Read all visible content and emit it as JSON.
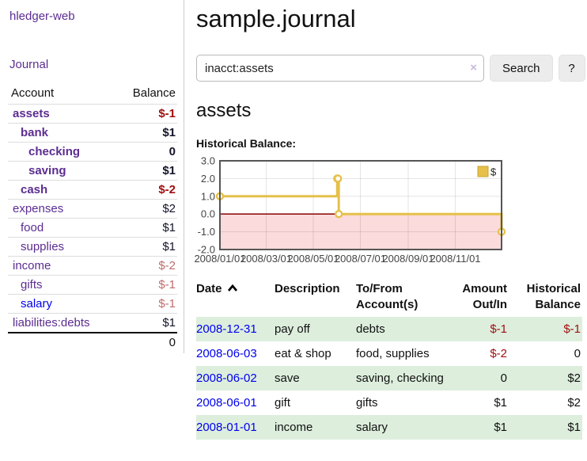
{
  "app": {
    "brand": "hledger-web",
    "nav_journal": "Journal"
  },
  "sidebar": {
    "accounts_header": "Account",
    "balance_header": "Balance",
    "items": [
      {
        "label": "assets",
        "balance": "$-1",
        "level": 0,
        "bold": true,
        "negative": true,
        "blue": false
      },
      {
        "label": "bank",
        "balance": "$1",
        "level": 1,
        "bold": true,
        "negative": false,
        "blue": false
      },
      {
        "label": "checking",
        "balance": "0",
        "level": 2,
        "bold": true,
        "negative": false,
        "blue": false
      },
      {
        "label": "saving",
        "balance": "$1",
        "level": 2,
        "bold": true,
        "negative": false,
        "blue": false
      },
      {
        "label": "cash",
        "balance": "$-2",
        "level": 1,
        "bold": true,
        "negative": true,
        "blue": false
      },
      {
        "label": "expenses",
        "balance": "$2",
        "level": 0,
        "bold": false,
        "negative": false,
        "blue": false
      },
      {
        "label": "food",
        "balance": "$1",
        "level": 1,
        "bold": false,
        "negative": false,
        "blue": false
      },
      {
        "label": "supplies",
        "balance": "$1",
        "level": 1,
        "bold": false,
        "negative": false,
        "blue": false
      },
      {
        "label": "income",
        "balance": "$-2",
        "level": 0,
        "bold": false,
        "negative": true,
        "blue": false
      },
      {
        "label": "gifts",
        "balance": "$-1",
        "level": 1,
        "bold": false,
        "negative": true,
        "blue": false
      },
      {
        "label": "salary",
        "balance": "$-1",
        "level": 1,
        "bold": false,
        "negative": true,
        "blue": true
      },
      {
        "label": "liabilities:debts",
        "balance": "$1",
        "level": 0,
        "bold": false,
        "negative": false,
        "blue": false
      }
    ],
    "total": "0"
  },
  "header": {
    "title": "sample.journal"
  },
  "search": {
    "value": "inacct:assets",
    "clear_icon": "×",
    "button": "Search",
    "help_button": "?"
  },
  "account_page": {
    "title": "assets",
    "chart_label": "Historical Balance:"
  },
  "chart_data": {
    "type": "line",
    "title": "Historical Balance:",
    "step": true,
    "series": [
      {
        "name": "$",
        "color": "#e6c04a",
        "points": [
          [
            "2008-01-01",
            1.0
          ],
          [
            "2008-06-01",
            2.0
          ],
          [
            "2008-06-02",
            2.0
          ],
          [
            "2008-06-03",
            0.0
          ],
          [
            "2008-12-31",
            -1.0
          ]
        ]
      }
    ],
    "x_range": [
      "2008-01-01",
      "2008-12-31"
    ],
    "ylim": [
      -2.0,
      3.0
    ],
    "y_ticks": [
      {
        "v": 3.0,
        "label": "3.0"
      },
      {
        "v": 2.0,
        "label": "2.0"
      },
      {
        "v": 1.0,
        "label": "1.0"
      },
      {
        "v": 0.0,
        "label": "0.0"
      },
      {
        "v": -1.0,
        "label": "-1.0"
      },
      {
        "v": -2.0,
        "label": "-2.0"
      }
    ],
    "x_ticks": [
      {
        "d": "2008-01-01",
        "label": "2008/01/01"
      },
      {
        "d": "2008-03-01",
        "label": "2008/03/01"
      },
      {
        "d": "2008-05-01",
        "label": "2008/05/01"
      },
      {
        "d": "2008-07-01",
        "label": "2008/07/01"
      },
      {
        "d": "2008-09-01",
        "label": "2008/09/01"
      },
      {
        "d": "2008-11-01",
        "label": "2008/11/01"
      }
    ],
    "grid": true,
    "negative_region_color": "#fbdbdb",
    "zero_line_color": "#8f1414",
    "legend": {
      "label": "$",
      "position": "top-right"
    }
  },
  "register": {
    "columns": {
      "date": "Date",
      "description": "Description",
      "accounts": "To/From Account(s)",
      "amount": "Amount Out/In",
      "balance": "Historical Balance"
    },
    "rows": [
      {
        "date": "2008-12-31",
        "description": "pay off",
        "accounts": "debts",
        "amount": "$-1",
        "balance": "$-1"
      },
      {
        "date": "2008-06-03",
        "description": "eat & shop",
        "accounts": "food, supplies",
        "amount": "$-2",
        "balance": "0"
      },
      {
        "date": "2008-06-02",
        "description": "save",
        "accounts": "saving, checking",
        "amount": "0",
        "balance": "$2"
      },
      {
        "date": "2008-06-01",
        "description": "gift",
        "accounts": "gifts",
        "amount": "$1",
        "balance": "$2"
      },
      {
        "date": "2008-01-01",
        "description": "income",
        "accounts": "salary",
        "amount": "$1",
        "balance": "$1"
      }
    ]
  }
}
